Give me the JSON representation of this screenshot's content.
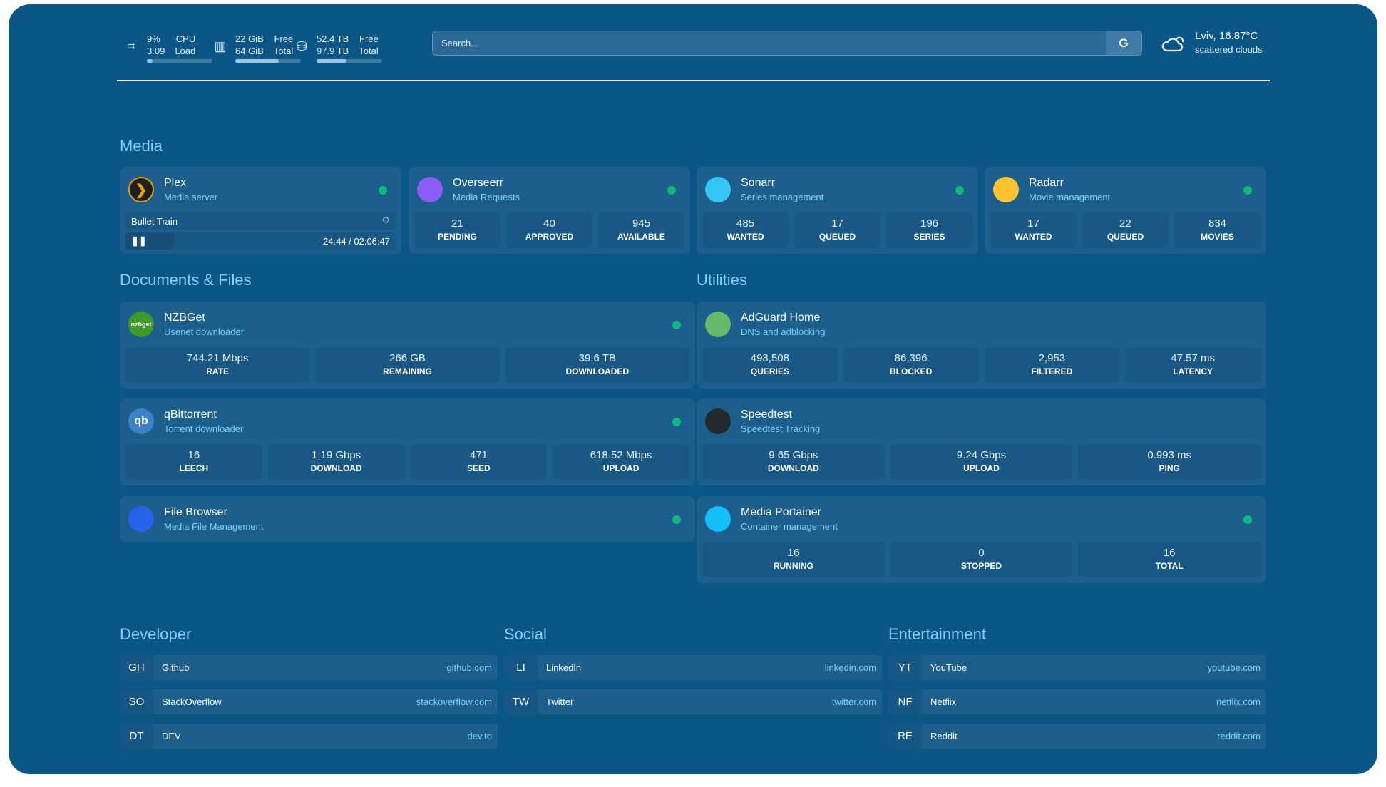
{
  "resources": [
    {
      "icon": "cpu-icon",
      "line1": [
        "9%",
        "CPU"
      ],
      "line2": [
        "3.09",
        "Load"
      ],
      "percent": 9
    },
    {
      "icon": "memory-icon",
      "line1": [
        "22 GiB",
        "Free"
      ],
      "line2": [
        "64 GiB",
        "Total"
      ],
      "percent": 66
    },
    {
      "icon": "disk-icon",
      "line1": [
        "52.4 TB",
        "Free"
      ],
      "line2": [
        "97.9 TB",
        "Total"
      ],
      "percent": 46
    }
  ],
  "search": {
    "placeholder": "Search...",
    "provider": "G"
  },
  "weather": {
    "location_temp": "Lviv, 16.87°C",
    "condition": "scattered clouds",
    "icon": "cloud-sun-icon"
  },
  "sections": {
    "media": "Media",
    "docs": "Documents & Files",
    "utilities": "Utilities",
    "developer": "Developer",
    "social": "Social",
    "entertainment": "Entertainment"
  },
  "plex": {
    "name": "Plex",
    "desc": "Media server",
    "now_playing": "Bullet Train",
    "time": "24:44 / 02:06:47",
    "status_color": "#10b981"
  },
  "cards": [
    {
      "id": "overseerr",
      "name": "Overseerr",
      "desc": "Media Requests",
      "logo_color": "#8b5cf6",
      "status": true,
      "stats": [
        [
          "21",
          "PENDING"
        ],
        [
          "40",
          "APPROVED"
        ],
        [
          "945",
          "AVAILABLE"
        ]
      ]
    },
    {
      "id": "sonarr",
      "name": "Sonarr",
      "desc": "Series management",
      "logo_color": "#35c5f4",
      "status": true,
      "stats": [
        [
          "485",
          "WANTED"
        ],
        [
          "17",
          "QUEUED"
        ],
        [
          "196",
          "SERIES"
        ]
      ]
    },
    {
      "id": "radarr",
      "name": "Radarr",
      "desc": "Movie management",
      "logo_color": "#ffc230",
      "status": true,
      "stats": [
        [
          "17",
          "WANTED"
        ],
        [
          "22",
          "QUEUED"
        ],
        [
          "834",
          "MOVIES"
        ]
      ]
    },
    {
      "id": "nzbget",
      "name": "NZBGet",
      "desc": "Usenet downloader",
      "logo_color": "#3f9a2a",
      "logo_text": "nzbget",
      "status": true,
      "stats": [
        [
          "744.21 Mbps",
          "RATE"
        ],
        [
          "266 GB",
          "REMAINING"
        ],
        [
          "39.6 TB",
          "DOWNLOADED"
        ]
      ]
    },
    {
      "id": "qbittorrent",
      "name": "qBittorrent",
      "desc": "Torrent downloader",
      "logo_color": "#3b82c8",
      "logo_text": "qb",
      "status": true,
      "stats": [
        [
          "16",
          "LEECH"
        ],
        [
          "1.19 Gbps",
          "DOWNLOAD"
        ],
        [
          "471",
          "SEED"
        ],
        [
          "618.52 Mbps",
          "UPLOAD"
        ]
      ]
    },
    {
      "id": "filebrowser",
      "name": "File Browser",
      "desc": "Media File Management",
      "logo_color": "#2563eb",
      "status": true,
      "stats": []
    },
    {
      "id": "adguard",
      "name": "AdGuard Home",
      "desc": "DNS and adblocking",
      "logo_color": "#67b868",
      "status": false,
      "stats": [
        [
          "498,508",
          "QUERIES"
        ],
        [
          "86,396",
          "BLOCKED"
        ],
        [
          "2,953",
          "FILTERED"
        ],
        [
          "47.57 ms",
          "LATENCY"
        ]
      ]
    },
    {
      "id": "speedtest",
      "name": "Speedtest",
      "desc": "Speedtest Tracking",
      "logo_color": "#222a30",
      "status": false,
      "stats": [
        [
          "9.65 Gbps",
          "DOWNLOAD"
        ],
        [
          "9.24 Gbps",
          "UPLOAD"
        ],
        [
          "0.993 ms",
          "PING"
        ]
      ]
    },
    {
      "id": "portainer",
      "name": "Media Portainer",
      "desc": "Container management",
      "logo_color": "#13bef9",
      "status": true,
      "stats": [
        [
          "16",
          "RUNNING"
        ],
        [
          "0",
          "STOPPED"
        ],
        [
          "16",
          "TOTAL"
        ]
      ]
    }
  ],
  "bookmarks": {
    "developer": [
      [
        "GH",
        "Github",
        "github.com"
      ],
      [
        "SO",
        "StackOverflow",
        "stackoverflow.com"
      ],
      [
        "DT",
        "DEV",
        "dev.to"
      ]
    ],
    "social": [
      [
        "LI",
        "LinkedIn",
        "linkedin.com"
      ],
      [
        "TW",
        "Twitter",
        "twitter.com"
      ]
    ],
    "entertainment": [
      [
        "YT",
        "YouTube",
        "youtube.com"
      ],
      [
        "NF",
        "Netflix",
        "netflix.com"
      ],
      [
        "RE",
        "Reddit",
        "reddit.com"
      ]
    ]
  }
}
